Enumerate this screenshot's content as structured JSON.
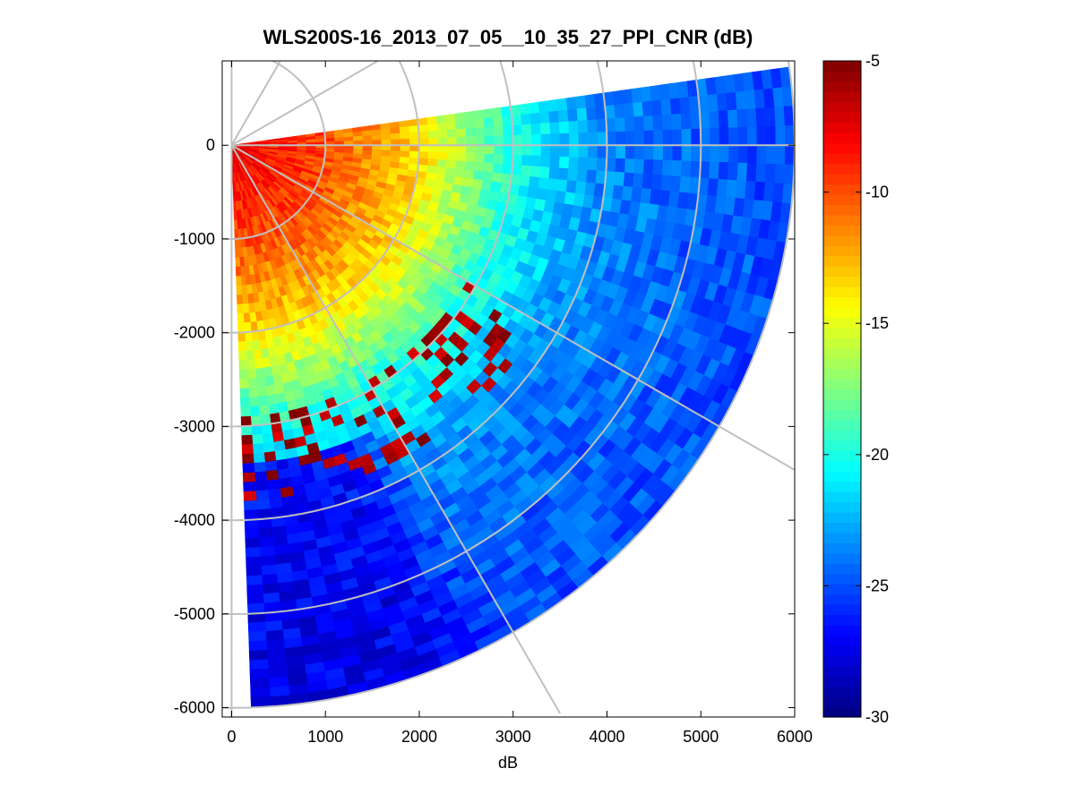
{
  "chart_data": {
    "type": "heatmap",
    "subtype": "polar-ppi-scan",
    "title": "WLS200S-16_2013_07_05__10_35_27_PPI_CNR (dB)",
    "xlabel": "dB",
    "ylabel": "",
    "xlim": [
      -100,
      6000
    ],
    "ylim": [
      -6100,
      900
    ],
    "x_ticks": [
      0,
      1000,
      2000,
      3000,
      4000,
      5000,
      6000
    ],
    "x_tick_labels": [
      "0",
      "1000",
      "2000",
      "3000",
      "4000",
      "5000",
      "6000"
    ],
    "y_ticks": [
      0,
      -1000,
      -2000,
      -3000,
      -4000,
      -5000,
      -6000
    ],
    "y_tick_labels": [
      "0",
      "-1000",
      "-2000",
      "-3000",
      "-4000",
      "-5000",
      "-6000"
    ],
    "scan": {
      "origin": [
        0,
        0
      ],
      "max_range_m": 6000,
      "azimuth_start_deg": 8,
      "azimuth_end_deg": -88,
      "range_gate_m": 100,
      "azimuth_step_deg": 2
    },
    "grid_rings_m": [
      1000,
      2000,
      3000,
      4000,
      5000,
      6000
    ],
    "grid_spokes_deg": [
      90,
      60,
      30,
      0,
      -30,
      -60,
      -90
    ],
    "colorbar": {
      "min": -30,
      "max": -5,
      "ticks": [
        -5,
        -10,
        -15,
        -20,
        -25,
        -30
      ],
      "tick_labels": [
        "-5",
        "-10",
        "-15",
        "-20",
        "-25",
        "-30"
      ],
      "colormap": "jet"
    },
    "cnr_profile_db": [
      {
        "range_m": 0,
        "cnr": -7.5
      },
      {
        "range_m": 1000,
        "cnr": -10
      },
      {
        "range_m": 2000,
        "cnr": -13.5
      },
      {
        "range_m": 3000,
        "cnr": -20
      },
      {
        "range_m": 4000,
        "cnr": -23.5
      },
      {
        "range_m": 5000,
        "cnr": -24.5
      },
      {
        "range_m": 6000,
        "cnr": -25
      }
    ],
    "cnr_south_sector": [
      {
        "range_m": 3400,
        "cnr": -26.5
      },
      {
        "range_m": 6000,
        "cnr": -27.5
      }
    ],
    "strong_echo_band": {
      "range_m": [
        2900,
        3800
      ],
      "azimuth_deg": [
        -88,
        -30
      ],
      "cnr": -6
    }
  },
  "colors": {
    "grid": "#c0c0c0",
    "axes": "#000000",
    "background": "#ffffff"
  }
}
